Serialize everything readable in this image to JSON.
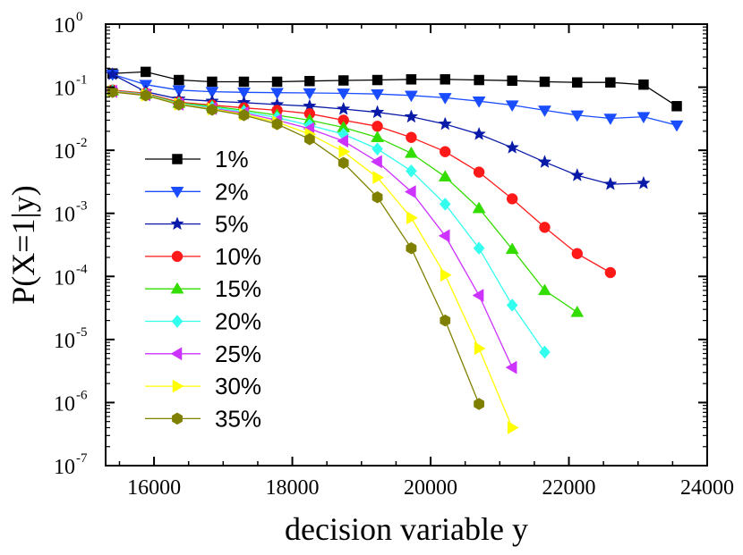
{
  "chart_data": {
    "type": "line",
    "title": "",
    "xlabel": "decision variable y",
    "ylabel": "P(X=1|y)",
    "xscale": "linear",
    "yscale": "log",
    "xlim": [
      15300,
      24000
    ],
    "ylim_exp": [
      -7,
      0
    ],
    "x_ticks": [
      16000,
      18000,
      20000,
      22000,
      24000
    ],
    "x_tick_labels": [
      "16000",
      "18000",
      "20000",
      "22000",
      "24000"
    ],
    "y_tick_exps": [
      -7,
      -6,
      -5,
      -4,
      -3,
      -2,
      -1,
      0
    ],
    "y_tick_labels": [
      {
        "base": "10",
        "exp": "-7"
      },
      {
        "base": "10",
        "exp": "-6"
      },
      {
        "base": "10",
        "exp": "-5"
      },
      {
        "base": "10",
        "exp": "-4"
      },
      {
        "base": "10",
        "exp": "-3"
      },
      {
        "base": "10",
        "exp": "-2"
      },
      {
        "base": "10",
        "exp": "-1"
      },
      {
        "base": "10",
        "exp": "0"
      }
    ],
    "legend_position": "center-left",
    "series": [
      {
        "name": "1%",
        "color": "#000000",
        "marker": "square",
        "x": [
          15400,
          15880,
          16360,
          16840,
          17300,
          17780,
          18250,
          18740,
          19230,
          19720,
          20210,
          20700,
          21180,
          21650,
          22120,
          22600,
          23080,
          23560
        ],
        "y": [
          0.165,
          0.175,
          0.13,
          0.122,
          0.122,
          0.122,
          0.125,
          0.128,
          0.13,
          0.133,
          0.133,
          0.13,
          0.127,
          0.122,
          0.119,
          0.119,
          0.11,
          0.05
        ]
      },
      {
        "name": "2%",
        "color": "#1a4dff",
        "marker": "triangle-down",
        "x": [
          15400,
          15880,
          16360,
          16840,
          17300,
          17780,
          18250,
          18740,
          19230,
          19720,
          20210,
          20700,
          21180,
          21650,
          22120,
          22600,
          23080,
          23560
        ],
        "y": [
          0.16,
          0.11,
          0.09,
          0.085,
          0.083,
          0.082,
          0.081,
          0.08,
          0.078,
          0.074,
          0.068,
          0.06,
          0.052,
          0.043,
          0.036,
          0.032,
          0.034,
          0.025
        ]
      },
      {
        "name": "5%",
        "color": "#0a1aa8",
        "marker": "star",
        "x": [
          15400,
          15880,
          16360,
          16840,
          17300,
          17780,
          18250,
          18740,
          19230,
          19720,
          20210,
          20700,
          21180,
          21650,
          22120,
          22600,
          23080
        ],
        "y": [
          0.16,
          0.085,
          0.065,
          0.06,
          0.057,
          0.053,
          0.05,
          0.045,
          0.04,
          0.034,
          0.026,
          0.018,
          0.011,
          0.0065,
          0.004,
          0.0029,
          0.003
        ]
      },
      {
        "name": "10%",
        "color": "#ff1a1a",
        "marker": "circle",
        "x": [
          15400,
          15880,
          16360,
          16840,
          17300,
          17780,
          18250,
          18740,
          19230,
          19720,
          20210,
          20700,
          21180,
          21650,
          22120,
          22600
        ],
        "y": [
          0.09,
          0.08,
          0.058,
          0.052,
          0.047,
          0.043,
          0.038,
          0.03,
          0.024,
          0.016,
          0.0095,
          0.0045,
          0.0017,
          0.0006,
          0.00023,
          0.000115
        ]
      },
      {
        "name": "15%",
        "color": "#33dd00",
        "marker": "triangle-up",
        "x": [
          15400,
          15880,
          16360,
          16840,
          17300,
          17780,
          18250,
          18740,
          19230,
          19720,
          20210,
          20700,
          21180,
          21650,
          22120
        ],
        "y": [
          0.088,
          0.078,
          0.056,
          0.05,
          0.043,
          0.036,
          0.03,
          0.023,
          0.016,
          0.009,
          0.0038,
          0.0012,
          0.00027,
          6e-05,
          2.7e-05
        ]
      },
      {
        "name": "20%",
        "color": "#33ffee",
        "marker": "diamond",
        "x": [
          15400,
          15880,
          16360,
          16840,
          17300,
          17780,
          18250,
          18740,
          19230,
          19720,
          20210,
          20700,
          21180,
          21650
        ],
        "y": [
          0.087,
          0.077,
          0.055,
          0.048,
          0.041,
          0.033,
          0.025,
          0.018,
          0.0105,
          0.0047,
          0.0014,
          0.00028,
          3.5e-05,
          6.3e-06
        ]
      },
      {
        "name": "25%",
        "color": "#cc33ff",
        "marker": "triangle-left",
        "x": [
          15400,
          15880,
          16360,
          16840,
          17300,
          17780,
          18250,
          18740,
          19230,
          19720,
          20210,
          20700,
          21180
        ],
        "y": [
          0.086,
          0.076,
          0.054,
          0.046,
          0.039,
          0.03,
          0.022,
          0.014,
          0.0066,
          0.0022,
          0.00044,
          5e-05,
          3.6e-06
        ]
      },
      {
        "name": "30%",
        "color": "#ffff00",
        "marker": "triangle-right",
        "x": [
          15400,
          15880,
          16360,
          16840,
          17300,
          17780,
          18250,
          18740,
          19230,
          19720,
          20210,
          20700,
          21180
        ],
        "y": [
          0.085,
          0.075,
          0.054,
          0.045,
          0.037,
          0.028,
          0.018,
          0.0095,
          0.0037,
          0.00085,
          0.000105,
          7.2e-06,
          4e-07
        ]
      },
      {
        "name": "35%",
        "color": "#808000",
        "marker": "hexagon",
        "x": [
          15400,
          15880,
          16360,
          16840,
          17300,
          17780,
          18250,
          18740,
          19230,
          19720,
          20210,
          20700
        ],
        "y": [
          0.084,
          0.074,
          0.053,
          0.044,
          0.036,
          0.026,
          0.015,
          0.0063,
          0.0018,
          0.00028,
          2e-05,
          9.5e-07
        ]
      }
    ]
  }
}
